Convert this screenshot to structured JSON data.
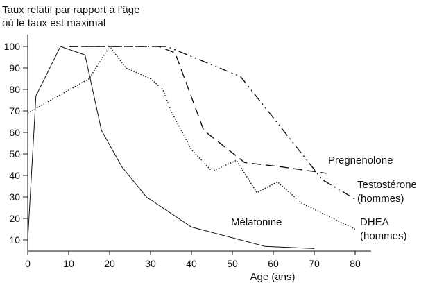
{
  "chart_data": {
    "type": "line",
    "ylabel_lines": [
      "Taux relatif par rapport à l’âge",
      "où le taux est maximal"
    ],
    "xlabel": "Age (ans)",
    "xlim": [
      0,
      82
    ],
    "ylim": [
      0,
      104
    ],
    "x_ticks": [
      0,
      10,
      20,
      30,
      40,
      50,
      60,
      70,
      80
    ],
    "y_ticks": [
      10,
      20,
      30,
      40,
      50,
      60,
      70,
      80,
      90,
      100
    ],
    "grid": false,
    "legend": "none",
    "series": [
      {
        "name": "Mélatonine",
        "label_lines": [
          "Mélatonine"
        ],
        "line_style": "solid",
        "color": "#111111",
        "x": [
          0,
          2,
          8,
          14,
          18,
          23,
          29,
          40,
          58,
          70
        ],
        "y": [
          10,
          77,
          100,
          96,
          61,
          44,
          30,
          16,
          7,
          6
        ]
      },
      {
        "name": "DHEA (hommes)",
        "label_lines": [
          "DHEA",
          "(hommes)"
        ],
        "line_style": "dotted",
        "color": "#111111",
        "x": [
          0,
          15,
          20,
          24,
          30,
          33,
          35,
          40,
          45,
          51,
          56,
          61,
          67,
          80
        ],
        "y": [
          69,
          85,
          100,
          90,
          85,
          80,
          70,
          52,
          42,
          47,
          32,
          37,
          27,
          15
        ]
      },
      {
        "name": "Pregnenolone",
        "label_lines": [
          "Pregnenolone"
        ],
        "line_style": "dashed",
        "color": "#111111",
        "x": [
          10,
          32,
          36,
          43,
          53,
          62,
          73
        ],
        "y": [
          100,
          100,
          97,
          61,
          46,
          44,
          41
        ]
      },
      {
        "name": "Testostérone (hommes)",
        "label_lines": [
          "Testostérone",
          "(hommes)"
        ],
        "line_style": "dashdot",
        "color": "#111111",
        "x": [
          10,
          34,
          52,
          62,
          72,
          80
        ],
        "y": [
          100,
          100,
          86,
          62,
          38,
          29
        ]
      }
    ]
  }
}
